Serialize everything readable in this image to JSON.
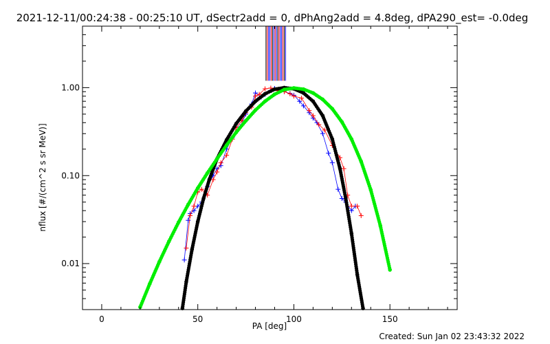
{
  "chart_data": {
    "type": "scatter",
    "title": "2021-12-11/00:24:38 - 00:25:10 UT, dSectr2add = 0, dPhAng2add = 4.8deg, dPA290_est= -0.0deg",
    "xlabel": "PA [deg]",
    "ylabel": "nflux [#/(cm^2 s sr MeV)]",
    "footer": "Created: Sun Jan 02 23:43:32 2022",
    "xlim": [
      -10,
      185
    ],
    "ylim": [
      0.003,
      5.0
    ],
    "yscale": "log",
    "grid": false,
    "x_ticks": [
      0,
      50,
      100,
      150
    ],
    "x_tick_labels": [
      "0",
      "50",
      "100",
      "150"
    ],
    "y_ticks": [
      0.01,
      0.1,
      1.0
    ],
    "y_tick_labels": [
      "0.01",
      "0.10",
      "1.00"
    ],
    "series": [
      {
        "color": "#00ee00",
        "marker": "filled-circle",
        "x": [
          20,
          25,
          30,
          35,
          40,
          45,
          50,
          55,
          60,
          65,
          70,
          75,
          80,
          85,
          90,
          95,
          100,
          105,
          110,
          115,
          120,
          125,
          130,
          135,
          140,
          145,
          150
        ],
        "y": [
          0.0032,
          0.0059,
          0.0105,
          0.0179,
          0.0295,
          0.0469,
          0.0721,
          0.107,
          0.155,
          0.222,
          0.311,
          0.42,
          0.555,
          0.7,
          0.84,
          0.95,
          0.99,
          0.96,
          0.87,
          0.735,
          0.575,
          0.408,
          0.26,
          0.145,
          0.069,
          0.027,
          0.0085
        ]
      },
      {
        "color": "#000000",
        "marker": "filled-circle",
        "x": [
          42,
          44,
          47,
          50,
          53,
          56,
          60,
          65,
          70,
          75,
          80,
          85,
          90,
          95,
          100,
          105,
          110,
          115,
          120,
          124,
          127,
          130,
          133,
          136
        ],
        "y": [
          0.0031,
          0.0062,
          0.0145,
          0.03,
          0.055,
          0.09,
          0.155,
          0.255,
          0.39,
          0.54,
          0.7,
          0.85,
          0.96,
          1.0,
          0.97,
          0.87,
          0.7,
          0.48,
          0.26,
          0.12,
          0.055,
          0.022,
          0.0075,
          0.0031
        ]
      },
      {
        "color": "#0000ff",
        "marker": "plus",
        "x": [
          43,
          45,
          46,
          48,
          50,
          52,
          55,
          58,
          60,
          62,
          65,
          68,
          72,
          75,
          78,
          80,
          83,
          85,
          88,
          90,
          92,
          95,
          98,
          100,
          103,
          105,
          108,
          110,
          112,
          115,
          118,
          120,
          123,
          125,
          127,
          130,
          132
        ],
        "y": [
          0.011,
          0.031,
          0.037,
          0.04,
          0.045,
          0.05,
          0.075,
          0.1,
          0.12,
          0.13,
          0.2,
          0.27,
          0.36,
          0.5,
          0.65,
          0.87,
          0.78,
          0.84,
          0.93,
          0.98,
          0.94,
          0.9,
          0.86,
          0.82,
          0.7,
          0.62,
          0.52,
          0.45,
          0.4,
          0.3,
          0.18,
          0.14,
          0.07,
          0.055,
          0.05,
          0.04,
          0.045
        ]
      },
      {
        "color": "#ff0000",
        "marker": "plus",
        "x": [
          44,
          46,
          48,
          50,
          52,
          55,
          58,
          60,
          62,
          65,
          68,
          70,
          73,
          75,
          78,
          80,
          82,
          85,
          88,
          92,
          95,
          98,
          100,
          104,
          108,
          110,
          113,
          116,
          120,
          124,
          126,
          128,
          130,
          133,
          135
        ],
        "y": [
          0.015,
          0.035,
          0.045,
          0.065,
          0.07,
          0.06,
          0.09,
          0.11,
          0.14,
          0.17,
          0.26,
          0.35,
          0.42,
          0.52,
          0.6,
          0.8,
          0.84,
          0.97,
          0.99,
          0.92,
          0.9,
          0.85,
          0.8,
          0.76,
          0.55,
          0.48,
          0.38,
          0.33,
          0.22,
          0.16,
          0.12,
          0.06,
          0.045,
          0.045,
          0.035
        ]
      }
    ],
    "vertical_spikes": {
      "x_center": 90.5,
      "ymin": 1.0,
      "ymax": 5.0,
      "colors": [
        "#000000",
        "#ff0000",
        "#0000ff",
        "#0000ff",
        "#ff0000",
        "#000000",
        "#0000ff",
        "#ff0000",
        "#0000ff",
        "#000000",
        "#ff0000",
        "#0000ff",
        "#0000ff",
        "#ff0000",
        "#000000",
        "#0000ff"
      ]
    }
  }
}
